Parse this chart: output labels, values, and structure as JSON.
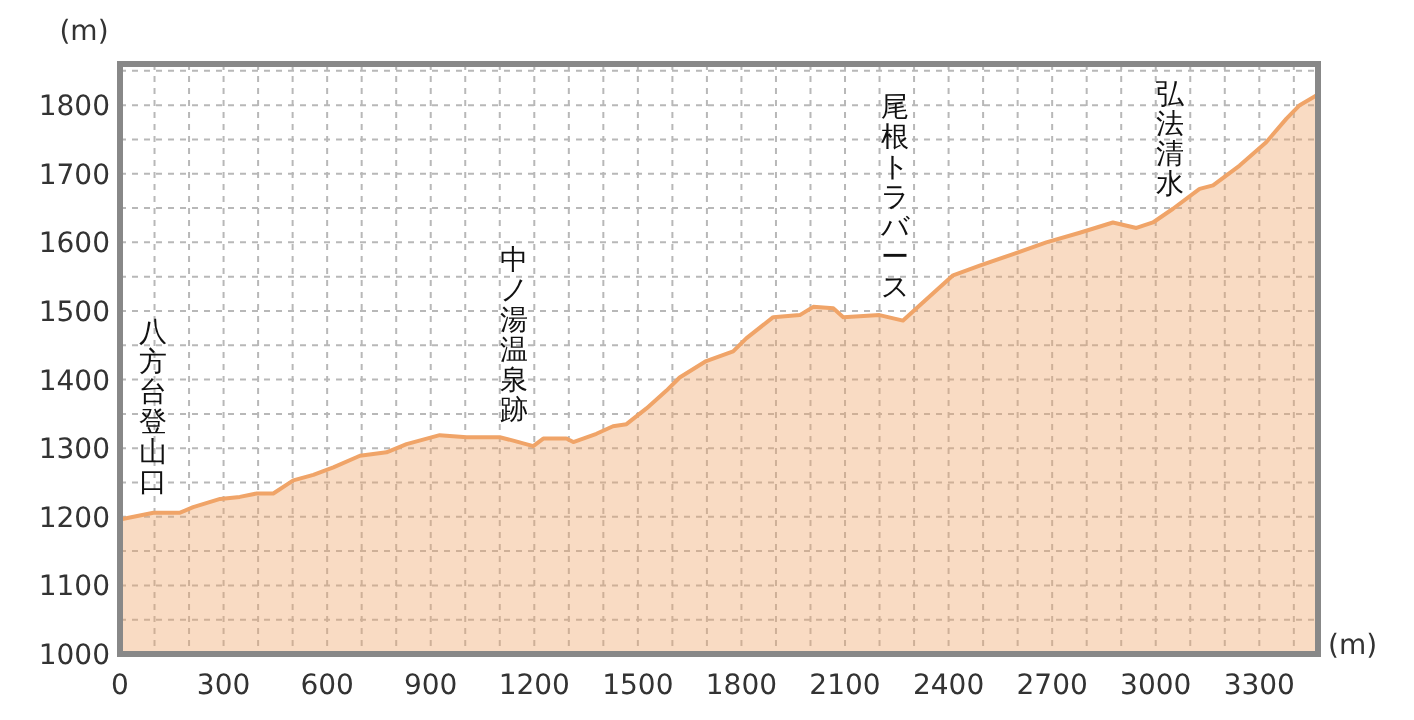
{
  "chart_data": {
    "type": "area",
    "xlabel": "(m)",
    "ylabel": "(m)",
    "x": [
      0,
      97,
      174,
      212,
      290,
      347,
      396,
      444,
      502,
      560,
      618,
      695,
      772,
      830,
      926,
      1004,
      1100,
      1139,
      1197,
      1226,
      1293,
      1313,
      1380,
      1428,
      1467,
      1525,
      1583,
      1621,
      1698,
      1776,
      1814,
      1892,
      1969,
      2008,
      2066,
      2095,
      2200,
      2268,
      2316,
      2413,
      2490,
      2587,
      2683,
      2780,
      2876,
      2944,
      2992,
      3050,
      3127,
      3166,
      3243,
      3320,
      3378,
      3417,
      3465
    ],
    "series": [
      {
        "color": "#f0a468",
        "values": [
          1196,
          1206,
          1206,
          1214,
          1226,
          1229,
          1234,
          1234,
          1253,
          1261,
          1272,
          1289,
          1294,
          1306,
          1319,
          1316,
          1316,
          1311,
          1303,
          1314,
          1314,
          1309,
          1321,
          1332,
          1335,
          1358,
          1384,
          1403,
          1427,
          1441,
          1460,
          1491,
          1494,
          1506,
          1504,
          1491,
          1494,
          1486,
          1508,
          1552,
          1566,
          1583,
          1600,
          1614,
          1629,
          1621,
          1629,
          1649,
          1678,
          1683,
          1712,
          1746,
          1780,
          1800,
          1814
        ]
      }
    ],
    "xlim": [
      0,
      3470
    ],
    "ylim": [
      1000,
      1860
    ],
    "xticks": [
      0,
      {
        "value": 100,
        "label": null
      },
      {
        "value": 200,
        "label": null
      },
      300,
      {
        "value": 400,
        "label": null
      },
      {
        "value": 500,
        "label": null
      },
      600,
      {
        "value": 700,
        "label": null
      },
      {
        "value": 800,
        "label": null
      },
      900,
      {
        "value": 1000,
        "label": null
      },
      {
        "value": 1100,
        "label": null
      },
      1200,
      {
        "value": 1300,
        "label": null
      },
      {
        "value": 1400,
        "label": null
      },
      1500,
      {
        "value": 1600,
        "label": null
      },
      {
        "value": 1700,
        "label": null
      },
      1800,
      {
        "value": 1900,
        "label": null
      },
      {
        "value": 2000,
        "label": null
      },
      2100,
      {
        "value": 2200,
        "label": null
      },
      {
        "value": 2300,
        "label": null
      },
      2400,
      {
        "value": 2500,
        "label": null
      },
      {
        "value": 2600,
        "label": null
      },
      2700,
      {
        "value": 2800,
        "label": null
      },
      {
        "value": 2900,
        "label": null
      },
      3000,
      {
        "value": 3100,
        "label": null
      },
      {
        "value": 3200,
        "label": null
      },
      3300,
      {
        "value": 3400,
        "label": null
      }
    ],
    "yticks": [
      1000,
      {
        "value": 1050,
        "label": null
      },
      1100,
      {
        "value": 1150,
        "label": null
      },
      1200,
      {
        "value": 1250,
        "label": null
      },
      1300,
      {
        "value": 1350,
        "label": null
      },
      1400,
      {
        "value": 1450,
        "label": null
      },
      1500,
      {
        "value": 1550,
        "label": null
      },
      1600,
      {
        "value": 1650,
        "label": null
      },
      1700,
      {
        "value": 1750,
        "label": null
      },
      1800,
      {
        "value": 1850,
        "label": null
      }
    ],
    "grid": true,
    "annotations": [
      {
        "text": "八方台登山口",
        "x": 95,
        "y": 1206
      },
      {
        "text": "中ノ湯温泉跡",
        "x": 1140,
        "y": 1311
      },
      {
        "text": "尾根トラバース",
        "x": 2246,
        "y": 1490
      },
      {
        "text": "弘法清水",
        "x": 3040,
        "y": 1640
      }
    ]
  }
}
